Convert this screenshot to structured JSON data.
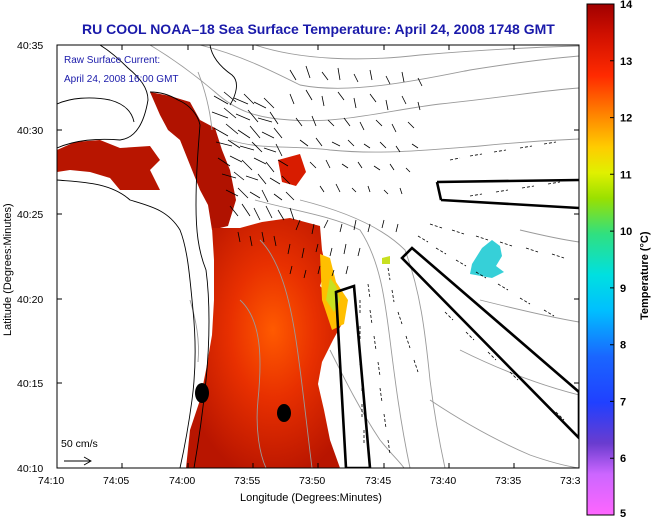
{
  "title": "RU COOL  NOAA–18  Sea Surface Temperature:  April 24, 2008 1748 GMT",
  "overlay_title": "Raw Surface Current:",
  "overlay_time": "April 24, 2008 16:00 GMT",
  "scale_label": "50 cm/s",
  "x_axis_label": "Longitude (Degrees:Minutes)",
  "y_axis_label": "Latitude (Degrees:Minutes)",
  "x_ticks": [
    "74:10",
    "74:05",
    "74:00",
    "73:55",
    "73:50",
    "73:45",
    "73:40",
    "73:35",
    "73:3"
  ],
  "y_ticks": [
    "40:35",
    "40:30",
    "40:25",
    "40:20",
    "40:15",
    "40:10"
  ],
  "colorbar": {
    "label": "Temperature (°C)",
    "ticks": [
      "14",
      "13",
      "12",
      "11",
      "10",
      "9",
      "8",
      "7",
      "6",
      "5"
    ],
    "min": 5,
    "max": 14
  }
}
